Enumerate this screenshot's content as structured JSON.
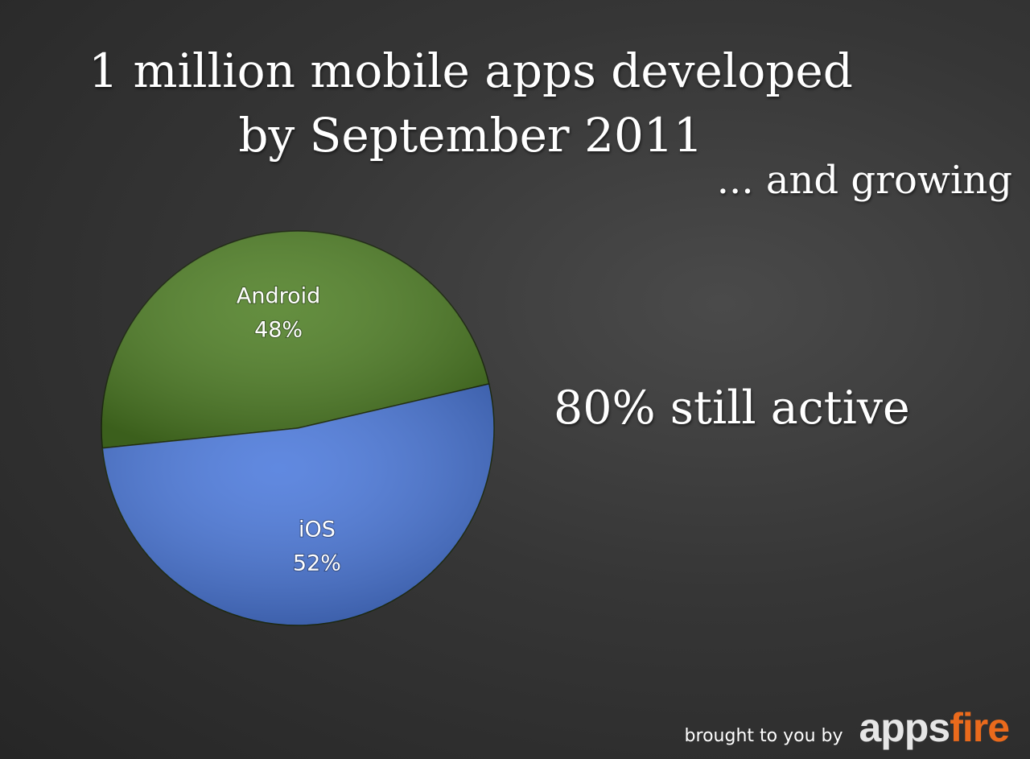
{
  "chart_data": {
    "type": "pie",
    "title": "1 million mobile apps developed by September 2011",
    "subtitle": "... and growing",
    "annotation": "80% still active",
    "categories": [
      "Android",
      "iOS"
    ],
    "values": [
      48,
      52
    ],
    "value_labels": [
      "48%",
      "52%"
    ],
    "colors": [
      "#4f7f25",
      "#4b79dc"
    ]
  },
  "footer": {
    "text": "brought to you by",
    "logo": [
      "apps",
      "fire"
    ]
  }
}
